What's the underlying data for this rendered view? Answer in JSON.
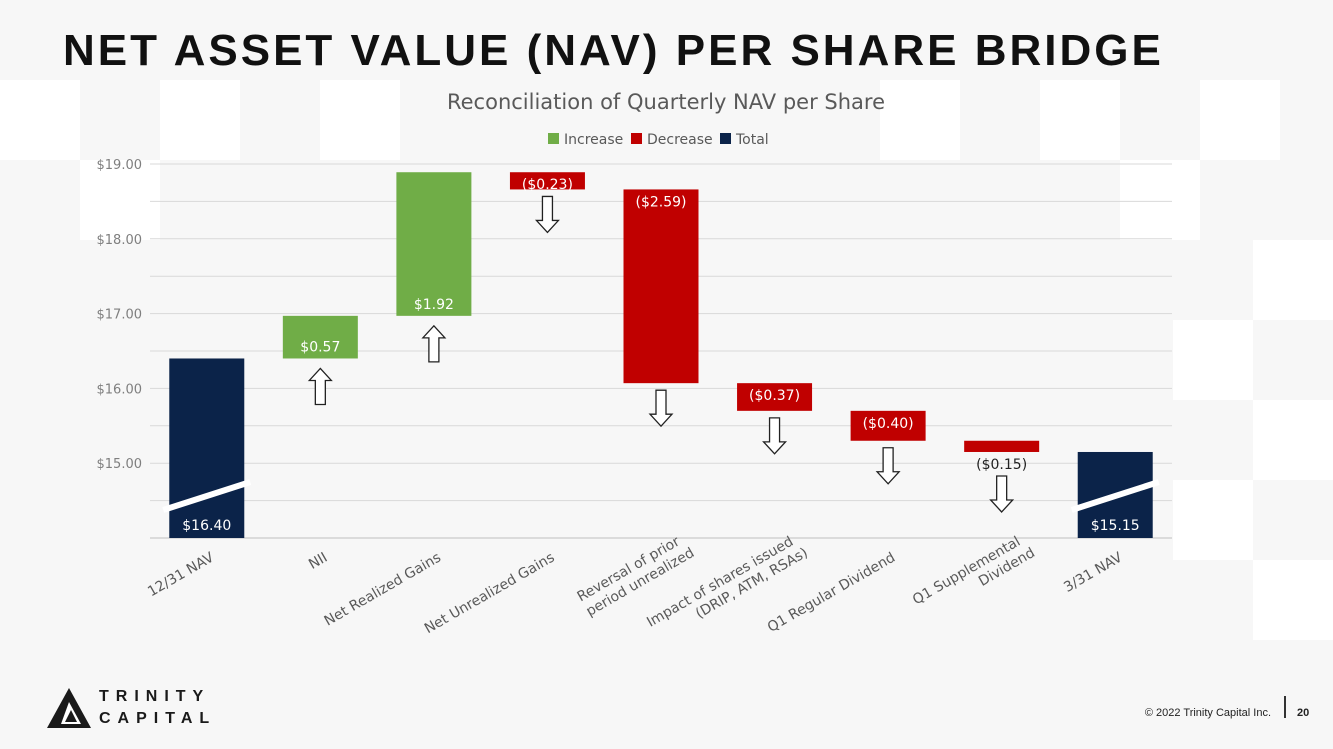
{
  "slide": {
    "title": "NET ASSET VALUE (NAV) PER SHARE BRIDGE",
    "copyright": "© 2022 Trinity Capital Inc.",
    "page_number": "20",
    "logo_line1": "TRINITY",
    "logo_line2": "CAPITAL"
  },
  "colors": {
    "increase": "#70ad47",
    "decrease": "#c00000",
    "total": "#0b2349",
    "grid": "#d9d9d9",
    "axis_text": "#7f7f7f"
  },
  "chart_data": {
    "type": "bar",
    "subtype": "waterfall",
    "title": "Reconciliation of Quarterly NAV per Share",
    "legend": [
      "Increase",
      "Decrease",
      "Total"
    ],
    "legend_position": "top",
    "ylim": [
      14.0,
      19.0
    ],
    "yticks": [
      "$15.00",
      "$16.00",
      "$17.00",
      "$18.00",
      "$19.00"
    ],
    "ytick_values": [
      15,
      16,
      17,
      18,
      19
    ],
    "grid": true,
    "axis_break": true,
    "categories": [
      [
        "12/31 NAV"
      ],
      [
        "NII"
      ],
      [
        "Net Realized Gains"
      ],
      [
        "Net Unrealized Gains"
      ],
      [
        "Reversal of prior",
        "period unrealized"
      ],
      [
        "Impact of shares issued",
        "(DRIP, ATM, RSAs)"
      ],
      [
        "Q1 Regular Dividend"
      ],
      [
        "Q1 Supplemental",
        "Dividend"
      ],
      [
        "3/31 NAV"
      ]
    ],
    "bars": [
      {
        "kind": "total",
        "start": 14.0,
        "end": 16.4,
        "label": "$16.40"
      },
      {
        "kind": "increase",
        "start": 16.4,
        "end": 16.97,
        "label": "$0.57"
      },
      {
        "kind": "increase",
        "start": 16.97,
        "end": 18.89,
        "label": "$1.92"
      },
      {
        "kind": "decrease",
        "start": 18.89,
        "end": 18.66,
        "label": "($0.23)"
      },
      {
        "kind": "decrease",
        "start": 18.66,
        "end": 16.07,
        "label": "($2.59)"
      },
      {
        "kind": "decrease",
        "start": 16.07,
        "end": 15.7,
        "label": "($0.37)"
      },
      {
        "kind": "decrease",
        "start": 15.7,
        "end": 15.3,
        "label": "($0.40)"
      },
      {
        "kind": "decrease",
        "start": 15.3,
        "end": 15.15,
        "label": "($0.15)"
      },
      {
        "kind": "total",
        "start": 14.0,
        "end": 15.15,
        "label": "$15.15"
      }
    ]
  }
}
